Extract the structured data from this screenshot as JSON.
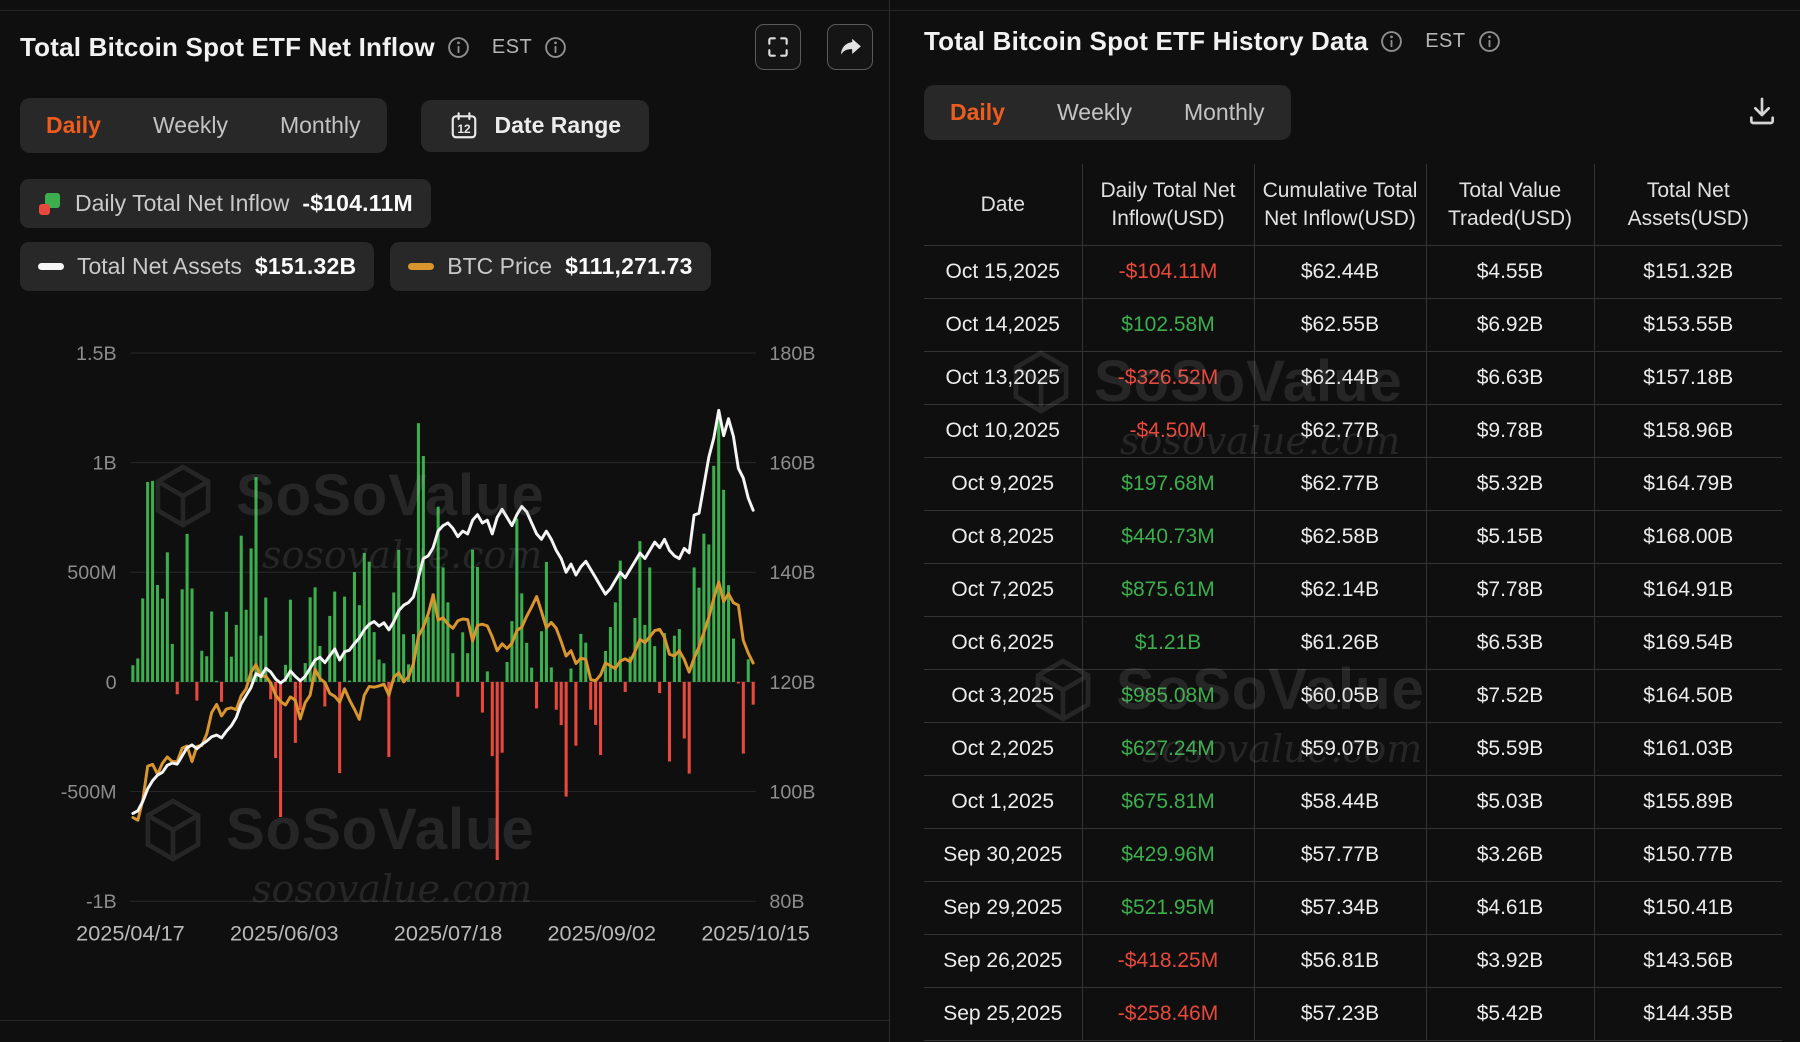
{
  "left_panel": {
    "title": "Total Bitcoin Spot ETF Net Inflow",
    "est_label": "EST",
    "tabs": [
      {
        "label": "Daily",
        "active": true
      },
      {
        "label": "Weekly",
        "active": false
      },
      {
        "label": "Monthly",
        "active": false
      }
    ],
    "date_range_label": "Date Range",
    "calendar_icon_day": "12",
    "legend": {
      "inflow_label": "Daily Total Net Inflow",
      "inflow_value": "-$104.11M",
      "assets_label": "Total Net Assets",
      "assets_value": "$151.32B",
      "btc_label": "BTC Price",
      "btc_value": "$111,271.73"
    }
  },
  "right_panel": {
    "title": "Total Bitcoin Spot ETF History Data",
    "est_label": "EST",
    "tabs": [
      {
        "label": "Daily",
        "active": true
      },
      {
        "label": "Weekly",
        "active": false
      },
      {
        "label": "Monthly",
        "active": false
      }
    ],
    "table": {
      "headers": [
        "Date",
        "Daily Total Net Inflow(USD)",
        "Cumulative Total Net Inflow(USD)",
        "Total Value Traded(USD)",
        "Total Net Assets(USD)"
      ],
      "rows": [
        {
          "date": "Oct 15,2025",
          "inflow": "-$104.11M",
          "cumulative": "$62.44B",
          "traded": "$4.55B",
          "assets": "$151.32B"
        },
        {
          "date": "Oct 14,2025",
          "inflow": "$102.58M",
          "cumulative": "$62.55B",
          "traded": "$6.92B",
          "assets": "$153.55B"
        },
        {
          "date": "Oct 13,2025",
          "inflow": "-$326.52M",
          "cumulative": "$62.44B",
          "traded": "$6.63B",
          "assets": "$157.18B"
        },
        {
          "date": "Oct 10,2025",
          "inflow": "-$4.50M",
          "cumulative": "$62.77B",
          "traded": "$9.78B",
          "assets": "$158.96B"
        },
        {
          "date": "Oct 9,2025",
          "inflow": "$197.68M",
          "cumulative": "$62.77B",
          "traded": "$5.32B",
          "assets": "$164.79B"
        },
        {
          "date": "Oct 8,2025",
          "inflow": "$440.73M",
          "cumulative": "$62.58B",
          "traded": "$5.15B",
          "assets": "$168.00B"
        },
        {
          "date": "Oct 7,2025",
          "inflow": "$875.61M",
          "cumulative": "$62.14B",
          "traded": "$7.78B",
          "assets": "$164.91B"
        },
        {
          "date": "Oct 6,2025",
          "inflow": "$1.21B",
          "cumulative": "$61.26B",
          "traded": "$6.53B",
          "assets": "$169.54B"
        },
        {
          "date": "Oct 3,2025",
          "inflow": "$985.08M",
          "cumulative": "$60.05B",
          "traded": "$7.52B",
          "assets": "$164.50B"
        },
        {
          "date": "Oct 2,2025",
          "inflow": "$627.24M",
          "cumulative": "$59.07B",
          "traded": "$5.59B",
          "assets": "$161.03B"
        },
        {
          "date": "Oct 1,2025",
          "inflow": "$675.81M",
          "cumulative": "$58.44B",
          "traded": "$5.03B",
          "assets": "$155.89B"
        },
        {
          "date": "Sep 30,2025",
          "inflow": "$429.96M",
          "cumulative": "$57.77B",
          "traded": "$3.26B",
          "assets": "$150.77B"
        },
        {
          "date": "Sep 29,2025",
          "inflow": "$521.95M",
          "cumulative": "$57.34B",
          "traded": "$4.61B",
          "assets": "$150.41B"
        },
        {
          "date": "Sep 26,2025",
          "inflow": "-$418.25M",
          "cumulative": "$56.81B",
          "traded": "$3.92B",
          "assets": "$143.56B"
        },
        {
          "date": "Sep 25,2025",
          "inflow": "-$258.46M",
          "cumulative": "$57.23B",
          "traded": "$5.42B",
          "assets": "$144.35B"
        }
      ]
    }
  },
  "watermark": {
    "brand": "SoSoValue",
    "site": "sosovalue.com"
  },
  "colors": {
    "accent": "#ee5d1e",
    "positive": "#3cae4d",
    "negative": "#e8493c",
    "btc_line": "#d9952e",
    "assets_line": "#f5f5f5",
    "background": "#0f0f0f"
  },
  "chart_data": {
    "type": "bar",
    "title": "Total Bitcoin Spot ETF Net Inflow",
    "subtype": "combo-bar-with-two-lines",
    "series": [
      {
        "name": "Daily Total Net Inflow",
        "type": "bar",
        "unit": "USD millions",
        "axis": "left"
      },
      {
        "name": "Total Net Assets",
        "type": "line",
        "unit": "USD billions",
        "axis": "right"
      },
      {
        "name": "BTC Price",
        "type": "line",
        "unit": "USD",
        "axis": "hidden"
      }
    ],
    "date_start": "2025/04/17",
    "date_end": "2025/10/15",
    "left_axis_range_musd": [
      -1000,
      1500
    ],
    "right_axis_range_busd": [
      80,
      180
    ],
    "btc_axis_range_usd": [
      70000,
      165000
    ],
    "left_ticks": [
      {
        "value": 1500,
        "label": "1.5B"
      },
      {
        "value": 1000,
        "label": "1B"
      },
      {
        "value": 500,
        "label": "500M"
      },
      {
        "value": 0,
        "label": "0"
      },
      {
        "value": -500,
        "label": "-500M"
      },
      {
        "value": -1000,
        "label": "-1B"
      }
    ],
    "right_ticks": [
      {
        "value": 180,
        "label": "180B"
      },
      {
        "value": 160,
        "label": "160B"
      },
      {
        "value": 140,
        "label": "140B"
      },
      {
        "value": 120,
        "label": "120B"
      },
      {
        "value": 100,
        "label": "100B"
      },
      {
        "value": 80,
        "label": "80B"
      }
    ],
    "x_ticks": [
      {
        "pos": 0,
        "label": "2025/04/17"
      },
      {
        "pos": 0.246,
        "label": "2025/06/03"
      },
      {
        "pos": 0.508,
        "label": "2025/07/18"
      },
      {
        "pos": 0.754,
        "label": "2025/09/02"
      },
      {
        "pos": 1,
        "label": "2025/10/15"
      }
    ],
    "bars_net_inflow_musd": [
      76,
      107,
      381,
      912,
      917,
      442,
      380,
      591,
      173,
      -56,
      422,
      675,
      426,
      -85,
      142,
      117,
      321,
      5,
      -91,
      320,
      115,
      260,
      667,
      329,
      609,
      934,
      211,
      385,
      -79,
      -347,
      -616,
      78,
      375,
      -278,
      -128,
      86,
      386,
      431,
      164,
      -112,
      301,
      412,
      -416,
      389,
      6,
      501,
      350,
      588,
      548,
      227,
      102,
      85,
      -342,
      408,
      602,
      217,
      80,
      218,
      1180,
      1030,
      297,
      403,
      799,
      522,
      363,
      131,
      -68,
      226,
      131,
      603,
      524,
      -140,
      48,
      -338,
      -812,
      -323,
      91,
      277,
      745,
      404,
      178,
      65,
      -121,
      231,
      547,
      66,
      -127,
      -197,
      -523,
      61,
      -291,
      219,
      179,
      -127,
      -196,
      -333,
      141,
      250,
      363,
      553,
      -46,
      115,
      292,
      642,
      260,
      522,
      163,
      -51,
      223,
      -363,
      211,
      241,
      -258,
      -418,
      522,
      430,
      676,
      627,
      985,
      1210,
      876,
      441,
      198,
      -5,
      -327,
      103,
      -104
    ],
    "total_net_assets_busd": [
      96.0,
      96.5,
      98.2,
      100.5,
      102.0,
      103.0,
      103.5,
      104.8,
      105.2,
      105.0,
      106.5,
      108.0,
      108.5,
      107.8,
      108.6,
      109.2,
      110.0,
      110.3,
      109.8,
      111.0,
      112.0,
      113.5,
      116.0,
      117.5,
      119.0,
      121.5,
      121.0,
      122.5,
      121.8,
      120.5,
      119.8,
      120.5,
      122.0,
      121.0,
      120.2,
      121.0,
      122.5,
      124.0,
      124.5,
      123.5,
      124.8,
      126.0,
      124.0,
      125.5,
      125.8,
      127.0,
      128.0,
      129.5,
      130.5,
      131.0,
      130.2,
      130.8,
      129.5,
      131.0,
      133.0,
      134.0,
      134.5,
      135.5,
      139.0,
      142.5,
      143.0,
      144.5,
      147.5,
      148.5,
      149.0,
      148.0,
      146.5,
      147.5,
      147.0,
      149.5,
      150.5,
      149.0,
      149.5,
      147.0,
      150.0,
      151.5,
      150.0,
      148.5,
      150.5,
      152.0,
      151.0,
      149.0,
      147.0,
      146.0,
      147.5,
      146.0,
      144.0,
      142.5,
      140.0,
      141.5,
      139.5,
      141.0,
      142.0,
      140.5,
      139.0,
      137.5,
      136.0,
      137.0,
      138.5,
      140.0,
      139.0,
      140.5,
      142.0,
      143.5,
      142.5,
      144.0,
      145.5,
      144.5,
      146.0,
      144.0,
      143.0,
      142.5,
      144.35,
      143.56,
      150.41,
      150.77,
      155.89,
      161.03,
      164.5,
      169.54,
      164.91,
      168.0,
      164.79,
      158.96,
      157.18,
      153.55,
      151.32
    ],
    "btc_price_usd": [
      84500,
      84030,
      87500,
      93400,
      93700,
      92000,
      93900,
      95000,
      94200,
      94200,
      96500,
      96900,
      94200,
      96800,
      97000,
      99000,
      102700,
      104100,
      102100,
      103300,
      103500,
      103200,
      105600,
      106800,
      109700,
      111000,
      108900,
      109000,
      107800,
      105700,
      104600,
      104000,
      105400,
      104800,
      101600,
      104400,
      105700,
      110200,
      108600,
      107900,
      106000,
      105500,
      104500,
      106800,
      104900,
      103300,
      101500,
      105700,
      107200,
      107100,
      107300,
      107600,
      105700,
      108800,
      109600,
      108000,
      108900,
      111200,
      115900,
      117500,
      119800,
      123100,
      118700,
      119100,
      118000,
      117300,
      118600,
      118900,
      118800,
      115100,
      117800,
      118000,
      117700,
      115800,
      113400,
      114600,
      113800,
      114700,
      116900,
      117500,
      119400,
      121000,
      122800,
      120200,
      117400,
      118300,
      117300,
      115000,
      112500,
      113400,
      111200,
      112100,
      111900,
      108400,
      108200,
      109200,
      111300,
      110800,
      110300,
      111600,
      112000,
      111500,
      113300,
      115400,
      114800,
      115800,
      116900,
      117100,
      115700,
      112800,
      112500,
      113400,
      111900,
      109700,
      112100,
      114100,
      116600,
      119200,
      122500,
      125300,
      121900,
      123300,
      121700,
      121300,
      115200,
      113000,
      111272
    ]
  }
}
